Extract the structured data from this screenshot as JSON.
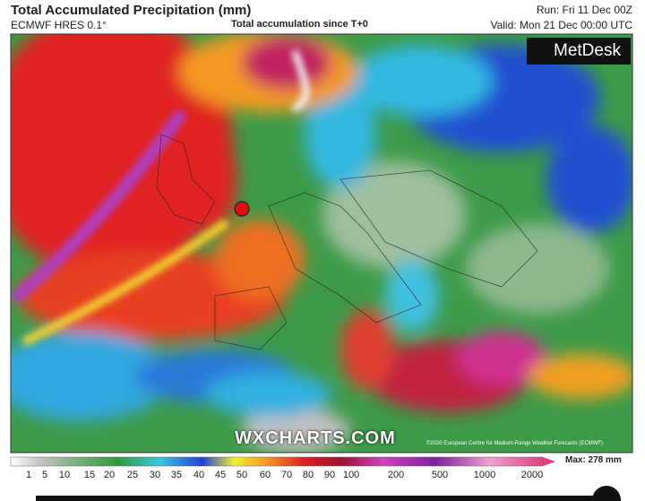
{
  "header": {
    "title": "Total Accumulated Precipitation (mm)",
    "model": "ECMWF HRES 0.1°",
    "subtitle": "Total accumulation since T+0",
    "run": "Run: Fri 11 Dec 00Z",
    "valid": "Valid: Mon 21 Dec 00:00 UTC"
  },
  "map": {
    "logo": "MetDesk",
    "watermark": "WXCHARTS.COM",
    "copyright": "©2020 European Centre for Medium-Range Weather Forecasts (ECMWF)"
  },
  "legend": {
    "ticks": [
      "1",
      "5",
      "10",
      "15",
      "20",
      "25",
      "30",
      "35",
      "40",
      "45",
      "50",
      "60",
      "70",
      "80",
      "90",
      "100",
      "200",
      "500",
      "1000",
      "2000"
    ],
    "max": "Max: 278 mm"
  }
}
